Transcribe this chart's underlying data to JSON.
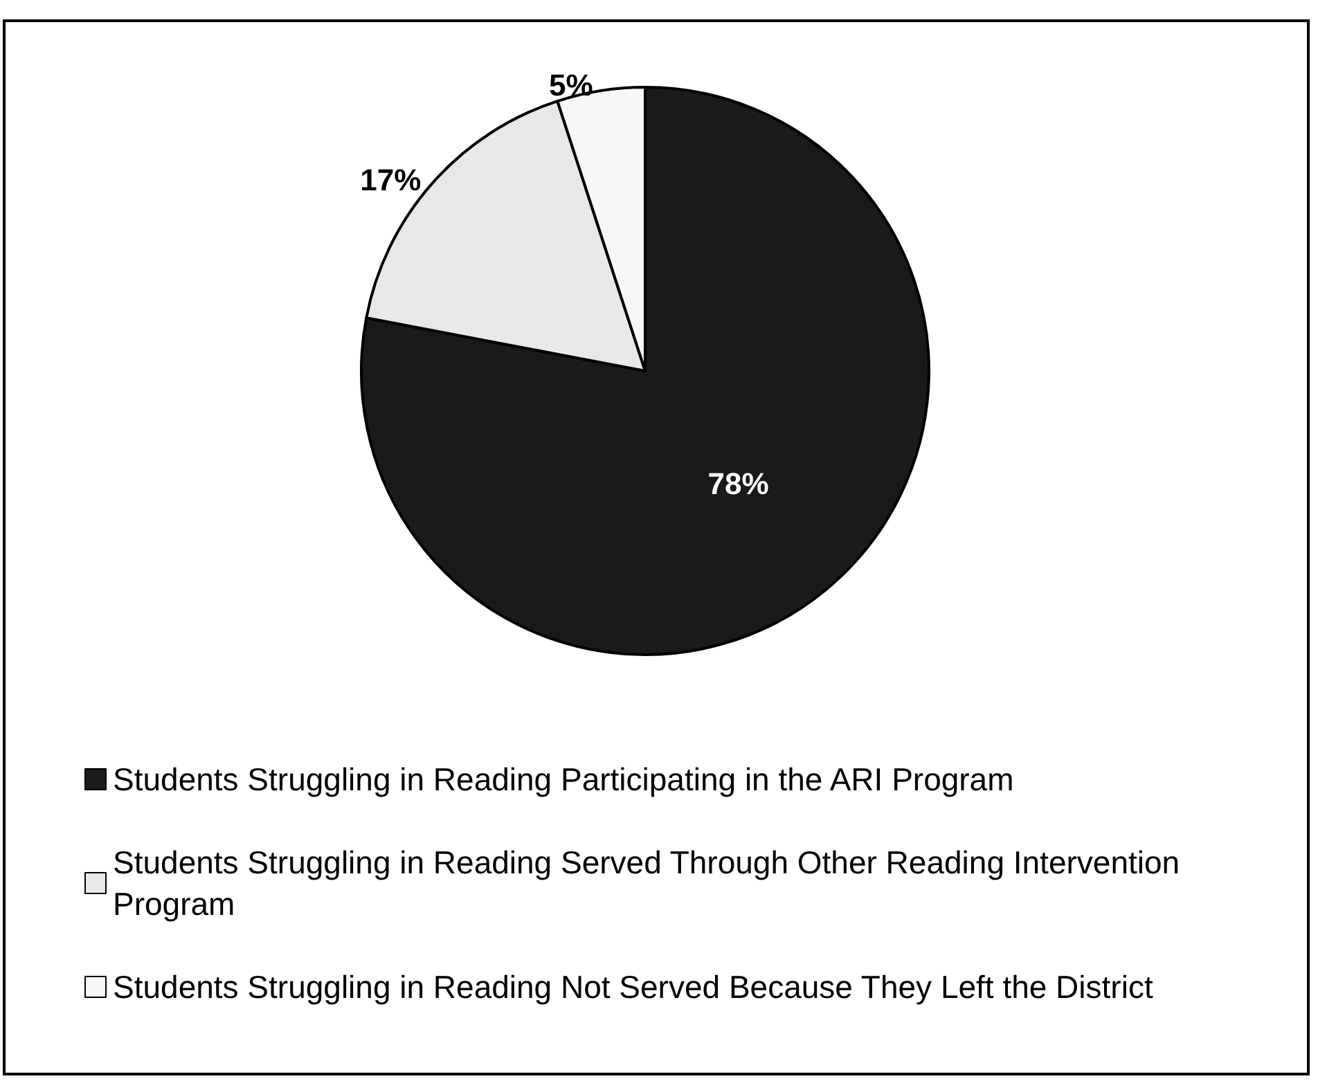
{
  "chart_data": {
    "type": "pie",
    "categories": [
      "Students Struggling in Reading Participating in the ARI Program",
      "Students Struggling in Reading Served Through Other Reading Intervention Program",
      "Students Struggling in Reading Not Served Because They Left the District"
    ],
    "values": [
      78,
      17,
      5
    ],
    "colors": [
      "#1a1a1a",
      "#e8e8e8",
      "#f7f7f7"
    ],
    "value_labels": [
      "78%",
      "17%",
      "5%"
    ],
    "legend": "bottom left"
  }
}
